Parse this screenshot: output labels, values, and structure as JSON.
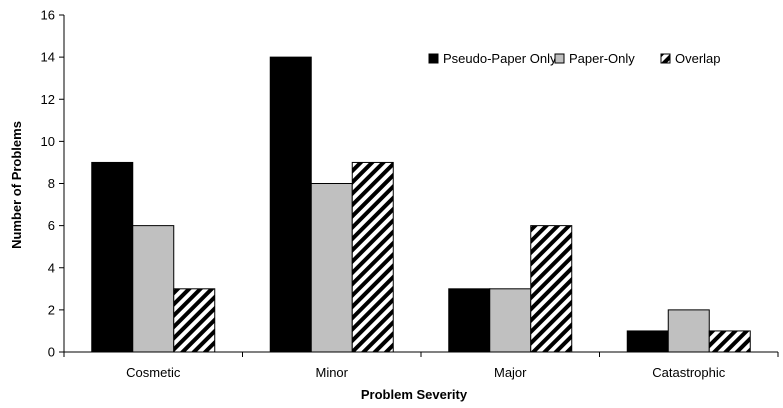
{
  "chart_data": {
    "type": "bar",
    "xlabel": "Problem Severity",
    "ylabel": "Number of Problems",
    "ylim": [
      0,
      16
    ],
    "yticks": [
      0,
      2,
      4,
      6,
      8,
      10,
      12,
      14,
      16
    ],
    "grid": false,
    "legend_position": "top-right",
    "categories": [
      "Cosmetic",
      "Minor",
      "Major",
      "Catastrophic"
    ],
    "series": [
      {
        "name": "Pseudo-Paper Only",
        "values": [
          9,
          14,
          3,
          1
        ],
        "fill": "black"
      },
      {
        "name": "Paper-Only",
        "values": [
          6,
          8,
          3,
          2
        ],
        "fill": "gray"
      },
      {
        "name": "Overlap",
        "values": [
          3,
          9,
          6,
          1
        ],
        "fill": "diagonal-hatch"
      }
    ],
    "colors": {
      "black": "#000000",
      "gray": "#c0c0c0",
      "hatch_fg": "#000000",
      "hatch_bg": "#ffffff"
    }
  }
}
